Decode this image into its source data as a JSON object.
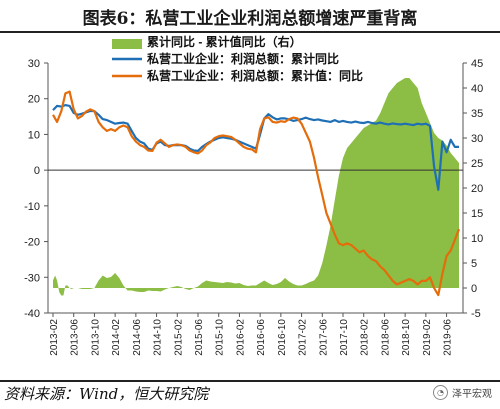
{
  "header": {
    "title": "图表6：私营工业企业利润总额增速严重背离"
  },
  "footer": {
    "source": "资料来源：Wind，恒大研究院",
    "brand": "泽平宏观",
    "brand_icon": "wechat-icon"
  },
  "chart_data": {
    "type": "line",
    "x_ticks": [
      "2013-02",
      "2013-06",
      "2013-10",
      "2014-02",
      "2014-06",
      "2014-10",
      "2015-02",
      "2015-06",
      "2015-10",
      "2016-02",
      "2016-06",
      "2016-10",
      "2017-02",
      "2017-06",
      "2017-10",
      "2018-02",
      "2018-06",
      "2018-10",
      "2019-02",
      "2019-06"
    ],
    "y_left": {
      "min": -40,
      "max": 30,
      "ticks": [
        -40,
        -30,
        -20,
        -10,
        0,
        10,
        20,
        30
      ]
    },
    "y_right": {
      "min": -5,
      "max": 45,
      "ticks": [
        -5,
        0,
        5,
        10,
        15,
        20,
        25,
        30,
        35,
        40,
        45
      ]
    },
    "grid": false,
    "legend_position": "top",
    "series": [
      {
        "name": "累计同比 - 累计值同比（右）",
        "type": "area",
        "axis": "right",
        "color": "#8cbd45",
        "x": [
          0,
          1,
          2,
          3,
          4,
          5,
          6,
          7,
          8,
          9,
          10,
          12,
          14,
          16,
          18,
          20,
          22,
          24,
          26,
          28,
          30,
          32,
          34,
          36,
          38,
          40,
          42,
          44,
          46,
          48,
          50,
          52,
          54,
          56,
          58,
          60,
          62,
          64,
          66,
          68,
          70,
          72,
          74,
          76,
          78,
          80,
          82,
          84,
          86,
          88,
          90,
          92,
          94,
          96,
          98,
          100,
          102,
          104,
          106,
          108,
          110,
          112,
          114,
          116,
          118,
          120,
          122,
          124,
          126,
          128,
          130,
          132,
          134,
          136,
          138,
          140,
          142,
          144,
          146,
          148,
          150,
          152,
          154,
          156,
          158,
          160,
          162,
          164,
          166,
          168,
          170,
          172,
          174,
          176,
          178,
          180,
          182,
          184,
          186,
          188,
          190,
          192,
          194,
          196
        ],
        "values": [
          1.5,
          2.5,
          1.5,
          -0.8,
          -1.5,
          -1.5,
          0.5,
          0.5,
          0,
          -0.2,
          0,
          0,
          -0.2,
          -0.2,
          -0.2,
          0,
          1.5,
          2.5,
          2,
          2.2,
          3,
          2,
          0.5,
          -0.5,
          -0.5,
          -0.7,
          -0.8,
          -0.8,
          -0.5,
          -0.6,
          -0.6,
          -0.7,
          -0.3,
          0,
          0.2,
          0.4,
          0.2,
          -0.2,
          -0.4,
          0,
          0.3,
          1,
          1.5,
          1.3,
          1.2,
          1.1,
          1,
          1.2,
          1.1,
          0.9,
          1,
          0.6,
          0.4,
          0.5,
          0.5,
          1,
          1.5,
          1,
          0.6,
          0.8,
          1.2,
          2,
          1.3,
          0.8,
          0.5,
          0.5,
          0.8,
          1.2,
          1.5,
          2.5,
          5,
          8.5,
          12.5,
          17.5,
          22.5,
          26,
          28,
          29,
          30,
          31,
          32,
          32.5,
          33,
          33.5,
          35,
          37,
          39,
          40,
          41,
          41.5,
          42,
          42,
          41,
          40,
          37,
          35,
          33,
          31,
          30,
          29.5,
          28.5,
          27,
          26,
          25
        ]
      },
      {
        "name": "私营工业企业：利润总额：累计同比",
        "type": "line",
        "axis": "left",
        "color": "#1f6fb5",
        "x": [
          0,
          2,
          4,
          6,
          8,
          10,
          12,
          14,
          16,
          18,
          20,
          22,
          24,
          26,
          28,
          30,
          32,
          34,
          36,
          38,
          40,
          42,
          44,
          46,
          48,
          50,
          52,
          54,
          56,
          58,
          60,
          62,
          64,
          66,
          68,
          70,
          72,
          74,
          76,
          78,
          80,
          82,
          84,
          86,
          88,
          90,
          92,
          94,
          96,
          98,
          100,
          102,
          104,
          106,
          108,
          110,
          112,
          114,
          116,
          118,
          120,
          122,
          124,
          126,
          128,
          130,
          132,
          134,
          136,
          138,
          140,
          142,
          144,
          146,
          148,
          150,
          152,
          154,
          156,
          158,
          160,
          162,
          164,
          166,
          168,
          170,
          172,
          174,
          176,
          178,
          180,
          182,
          184,
          186,
          188,
          190,
          192,
          194,
          196
        ],
        "values": [
          16.8,
          18,
          17.8,
          18.2,
          18,
          16,
          15.5,
          15.8,
          16.2,
          16.6,
          16.5,
          15.5,
          14.3,
          14,
          13.5,
          13,
          13.2,
          13.3,
          13,
          11,
          9,
          8,
          7.5,
          6,
          5.7,
          7.5,
          8,
          7,
          6.8,
          7,
          7,
          7,
          6.8,
          6,
          5.5,
          5.4,
          6.5,
          7.3,
          8,
          8.5,
          9,
          9.2,
          9,
          8.8,
          8.5,
          8,
          7.5,
          7,
          6.5,
          6,
          10,
          14.5,
          15.7,
          14.8,
          14.2,
          14.5,
          14.5,
          14.2,
          13.8,
          14,
          14.3,
          14.7,
          14.3,
          14,
          14.2,
          13.9,
          13.7,
          13.5,
          14,
          13.5,
          13.8,
          13.5,
          13.3,
          13.6,
          13.3,
          13.2,
          13.5,
          13.2,
          13,
          13.3,
          13,
          12.8,
          13.1,
          12.9,
          12.8,
          13,
          12.8,
          12.6,
          13,
          12.8,
          13,
          12.4,
          1,
          -5.5,
          8,
          5,
          8.5,
          6.5,
          6.5
        ]
      },
      {
        "name": "私营工业企业：利润总额：累计值：同比",
        "type": "line",
        "axis": "left",
        "color": "#e46c0a",
        "x": [
          0,
          2,
          4,
          6,
          8,
          10,
          12,
          14,
          16,
          18,
          20,
          22,
          24,
          26,
          28,
          30,
          32,
          34,
          36,
          38,
          40,
          42,
          44,
          46,
          48,
          50,
          52,
          54,
          56,
          58,
          60,
          62,
          64,
          66,
          68,
          70,
          72,
          74,
          76,
          78,
          80,
          82,
          84,
          86,
          88,
          90,
          92,
          94,
          96,
          98,
          100,
          102,
          104,
          106,
          108,
          110,
          112,
          114,
          116,
          118,
          120,
          122,
          124,
          126,
          128,
          130,
          132,
          134,
          136,
          138,
          140,
          142,
          144,
          146,
          148,
          150,
          152,
          154,
          156,
          158,
          160,
          162,
          164,
          166,
          168,
          170,
          172,
          174,
          176,
          178,
          180,
          182,
          184,
          186,
          188,
          190,
          192,
          194,
          196
        ],
        "values": [
          15.5,
          13.5,
          16.5,
          21.5,
          22,
          17,
          14.5,
          15.2,
          16.4,
          17,
          16.5,
          13.5,
          12,
          11,
          11.5,
          11,
          12,
          12.5,
          12,
          9.5,
          8,
          7,
          6.5,
          5.5,
          5.4,
          7.7,
          8.5,
          7.5,
          6.5,
          7,
          7.2,
          7,
          6.5,
          5.5,
          5,
          4.7,
          5.5,
          7,
          7.8,
          9,
          9.5,
          9.7,
          9.5,
          9.3,
          8.5,
          7.5,
          6.5,
          6,
          5.8,
          5,
          11.5,
          14.5,
          14.8,
          13.5,
          13.3,
          13.7,
          13.5,
          14.3,
          14.7,
          14.5,
          13,
          10.5,
          8,
          3.5,
          -2,
          -7,
          -12,
          -15,
          -18,
          -20.5,
          -21,
          -20.5,
          -21,
          -22,
          -23,
          -22.5,
          -24,
          -25,
          -25.5,
          -27,
          -28,
          -29.5,
          -31,
          -32,
          -31.5,
          -31,
          -30.5,
          -31,
          -32,
          -31,
          -31,
          -30,
          -33,
          -35,
          -29,
          -24,
          -22.5,
          -19.5,
          -16.5
        ]
      }
    ]
  }
}
